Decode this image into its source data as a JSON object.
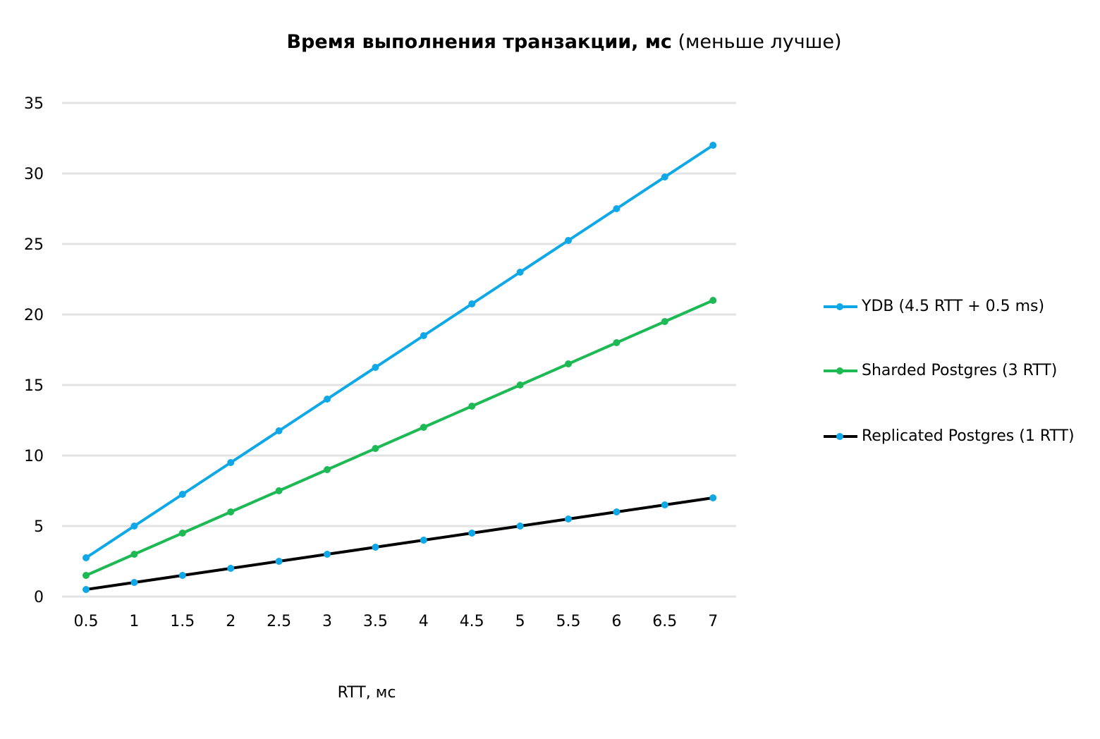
{
  "chart_data": {
    "type": "line",
    "title_bold": "Время выполнения транзакции, мс",
    "title_rest": " (меньше лучше)",
    "xlabel": "RTT, мс",
    "ylabel": "",
    "categories": [
      "0.5",
      "1",
      "1.5",
      "2",
      "2.5",
      "3",
      "3.5",
      "4",
      "4.5",
      "5",
      "5.5",
      "6",
      "6.5",
      "7"
    ],
    "ylim": [
      0,
      35
    ],
    "yticks": [
      0,
      5,
      10,
      15,
      20,
      25,
      30,
      35
    ],
    "grid": true,
    "legend_position": "right",
    "series": [
      {
        "name": "YDB (4.5 RTT + 0.5 ms)",
        "color": "#0fa8e6",
        "marker_color": "#0fa8e6",
        "values": [
          2.75,
          5.0,
          7.25,
          9.5,
          11.75,
          14.0,
          16.25,
          18.5,
          20.75,
          23.0,
          25.25,
          27.5,
          29.75,
          32.0
        ]
      },
      {
        "name": "Sharded Postgres (3 RTT)",
        "color": "#1db954",
        "marker_color": "#1db954",
        "values": [
          1.5,
          3.0,
          4.5,
          6.0,
          7.5,
          9.0,
          10.5,
          12.0,
          13.5,
          15.0,
          16.5,
          18.0,
          19.5,
          21.0
        ]
      },
      {
        "name": "Replicated Postgres (1 RTT)",
        "color": "#000000",
        "marker_color": "#0fa8e6",
        "values": [
          0.5,
          1.0,
          1.5,
          2.0,
          2.5,
          3.0,
          3.5,
          4.0,
          4.5,
          5.0,
          5.5,
          6.0,
          6.5,
          7.0
        ]
      }
    ]
  }
}
